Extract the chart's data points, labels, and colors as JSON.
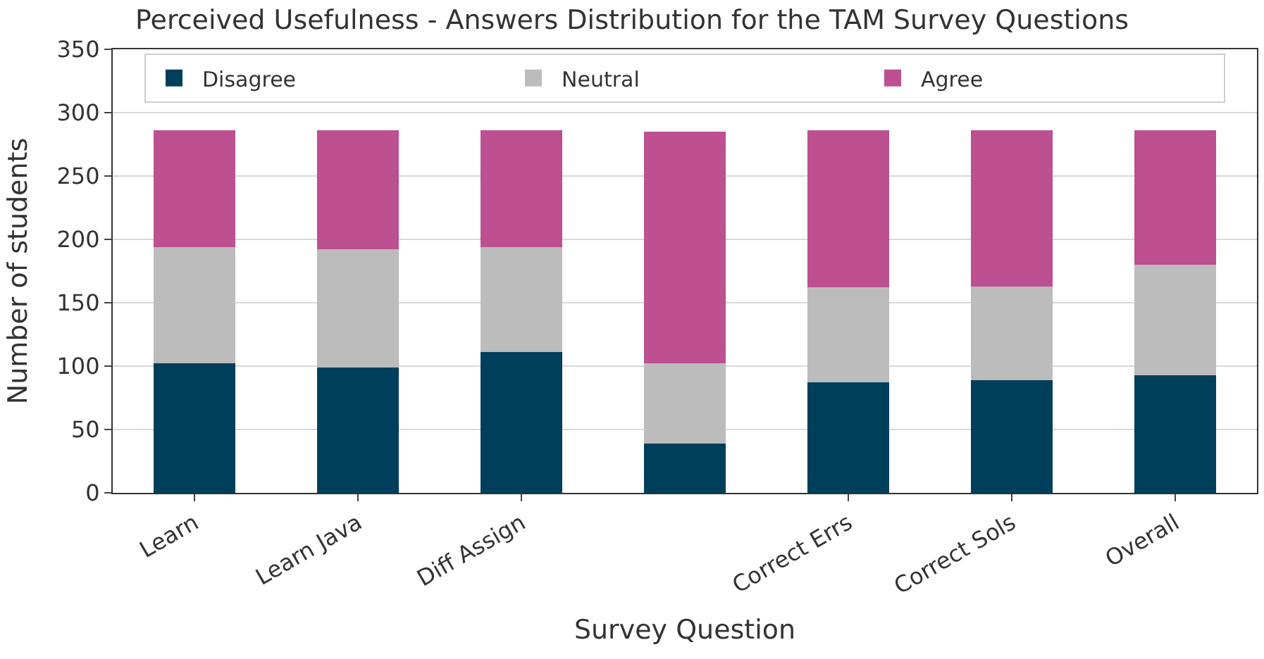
{
  "chart_data": {
    "type": "bar",
    "title": "Perceived Usefulness - Answers Distribution for the TAM Survey Questions",
    "xlabel": "Survey Question",
    "ylabel": "Number of students",
    "categories": [
      "Learn",
      "Learn Java",
      "Diff Assign",
      null,
      "Correct Errs",
      "Correct Sols",
      "Overall"
    ],
    "series": [
      {
        "name": "Disagree",
        "color": "#003f5c",
        "values": [
          102,
          99,
          111,
          39,
          87,
          89,
          93
        ]
      },
      {
        "name": "Neutral",
        "color": "#bcbcbc",
        "values": [
          92,
          93,
          83,
          63,
          75,
          74,
          87
        ]
      },
      {
        "name": "Agree",
        "color": "#bc5090",
        "values": [
          92,
          94,
          92,
          183,
          124,
          123,
          106
        ]
      }
    ],
    "stacked": true,
    "ylim": [
      0,
      350
    ],
    "yticks": [
      0,
      50,
      100,
      150,
      200,
      250,
      300,
      350
    ],
    "grid": "y",
    "legend": "top"
  }
}
